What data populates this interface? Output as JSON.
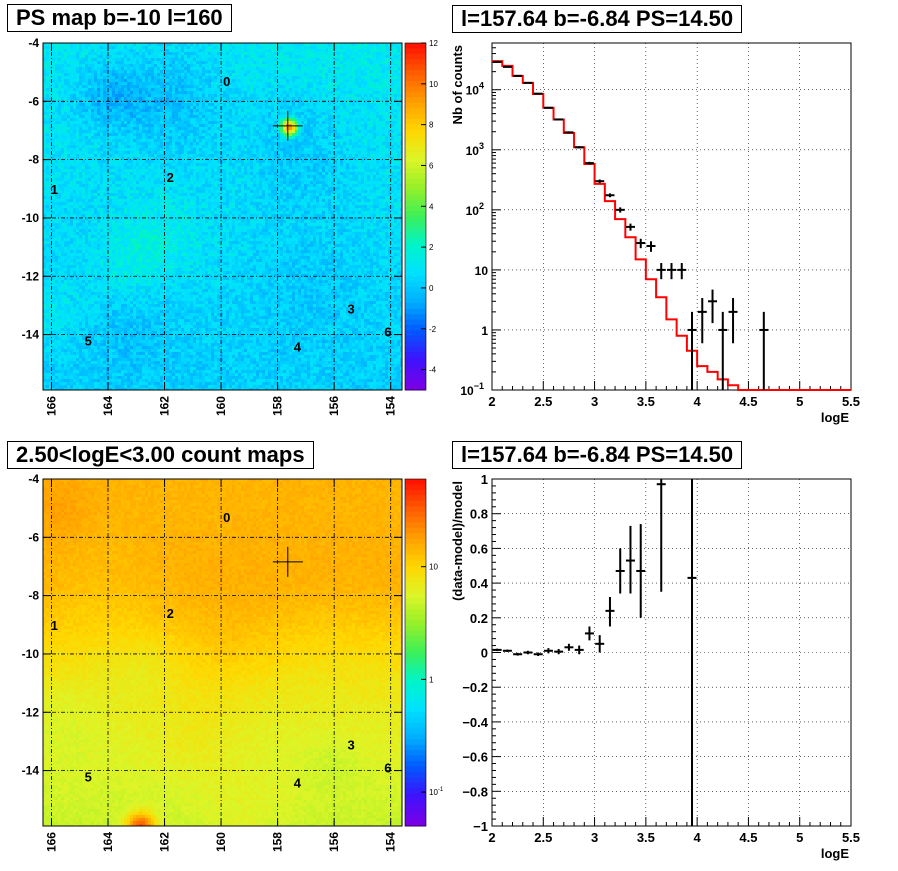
{
  "chart_data": [
    {
      "type": "heatmap",
      "title": "PS map b=-10 l=160",
      "x_ticks": [
        "166",
        "164",
        "162",
        "160",
        "158",
        "156",
        "154"
      ],
      "y_ticks": [
        "-4",
        "-6",
        "-8",
        "-10",
        "-12",
        "-14"
      ],
      "xlim": [
        166.3,
        153.6
      ],
      "ylim": [
        -15.9,
        -4
      ],
      "color_scale": "linear",
      "zlim": [
        -5,
        12
      ],
      "z_ticks": [
        "12",
        "10",
        "8",
        "6",
        "4",
        "2",
        "0",
        "-2",
        "-4"
      ],
      "sources": [
        {
          "label": "0",
          "l": 159.8,
          "b": -5.3
        },
        {
          "label": "1",
          "l": 165.9,
          "b": -9.0
        },
        {
          "label": "2",
          "l": 161.8,
          "b": -8.6
        },
        {
          "label": "3",
          "l": 155.4,
          "b": -13.1
        },
        {
          "label": "4",
          "l": 157.3,
          "b": -14.4
        },
        {
          "label": "5",
          "l": 164.7,
          "b": -14.2
        },
        {
          "label": "6",
          "l": 154.1,
          "b": -13.9
        }
      ],
      "marker": {
        "l": 157.64,
        "b": -6.84
      },
      "hot_spot": {
        "l": 157.64,
        "b": -6.84
      }
    },
    {
      "type": "line",
      "title": "l=157.64 b=-6.84 PS=14.50",
      "xlabel": "logE",
      "ylabel": "Nb of counts",
      "xlim": [
        2,
        5.5
      ],
      "ylim": [
        0.1,
        60000
      ],
      "yscale": "log",
      "grid": true,
      "x_ticks": [
        "2",
        "2.5",
        "3",
        "3.5",
        "4",
        "4.5",
        "5",
        "5.5"
      ],
      "y_ticks": [
        {
          "value": 0.1,
          "label": "10",
          "exp": "−1"
        },
        {
          "value": 1,
          "label": "1",
          "exp": ""
        },
        {
          "value": 10,
          "label": "10",
          "exp": ""
        },
        {
          "value": 100,
          "label": "10",
          "exp": "2"
        },
        {
          "value": 1000,
          "label": "10",
          "exp": "3"
        },
        {
          "value": 10000,
          "label": "10",
          "exp": "4"
        }
      ],
      "series": [
        {
          "kind": "step",
          "color": "#ff0000",
          "bin_edges": [
            2,
            2.1,
            2.2,
            2.3,
            2.4,
            2.5,
            2.6,
            2.7,
            2.8,
            2.9,
            3,
            3.1,
            3.2,
            3.3,
            3.4,
            3.5,
            3.6,
            3.7,
            3.8,
            3.9,
            4,
            4.1,
            4.2,
            4.3,
            4.4,
            4.5,
            4.6,
            4.7,
            4.8,
            4.9,
            5,
            5.1,
            5.2,
            5.3,
            5.4,
            5.5
          ],
          "values": [
            30000,
            25000,
            17000,
            13000,
            8500,
            5000,
            3200,
            1900,
            1100,
            580,
            270,
            140,
            70,
            35,
            15,
            7,
            3.5,
            1.5,
            0.8,
            0.45,
            0.25,
            0.2,
            0.15,
            0.12,
            0.1,
            0.1,
            0.1,
            0.1,
            0.1,
            0.1,
            0.1,
            0.1,
            0.1,
            0.1,
            0.1
          ]
        },
        {
          "kind": "errorbar",
          "color": "#000000",
          "points": [
            {
              "x": 2.05,
              "y": 29000,
              "lo": 28500,
              "hi": 29500
            },
            {
              "x": 2.15,
              "y": 24000,
              "lo": 23500,
              "hi": 24500
            },
            {
              "x": 2.25,
              "y": 17000,
              "lo": 16600,
              "hi": 17400
            },
            {
              "x": 2.35,
              "y": 13000,
              "lo": 12700,
              "hi": 13300
            },
            {
              "x": 2.45,
              "y": 8600,
              "lo": 8400,
              "hi": 8800
            },
            {
              "x": 2.55,
              "y": 5000,
              "lo": 4850,
              "hi": 5150
            },
            {
              "x": 2.65,
              "y": 3200,
              "lo": 3100,
              "hi": 3300
            },
            {
              "x": 2.75,
              "y": 1950,
              "lo": 1880,
              "hi": 2020
            },
            {
              "x": 2.85,
              "y": 1100,
              "lo": 1050,
              "hi": 1150
            },
            {
              "x": 2.95,
              "y": 600,
              "lo": 570,
              "hi": 630
            },
            {
              "x": 3.05,
              "y": 300,
              "lo": 280,
              "hi": 320
            },
            {
              "x": 3.15,
              "y": 175,
              "lo": 162,
              "hi": 188
            },
            {
              "x": 3.25,
              "y": 100,
              "lo": 90,
              "hi": 110
            },
            {
              "x": 3.35,
              "y": 52,
              "lo": 45,
              "hi": 59
            },
            {
              "x": 3.45,
              "y": 28,
              "lo": 23,
              "hi": 33
            },
            {
              "x": 3.55,
              "y": 25,
              "lo": 20,
              "hi": 30
            },
            {
              "x": 3.65,
              "y": 10,
              "lo": 7,
              "hi": 13
            },
            {
              "x": 3.75,
              "y": 10,
              "lo": 7,
              "hi": 13
            },
            {
              "x": 3.85,
              "y": 10,
              "lo": 7,
              "hi": 13
            },
            {
              "x": 3.95,
              "y": 1,
              "lo": 0.1,
              "hi": 2
            },
            {
              "x": 4.05,
              "y": 2,
              "lo": 0.6,
              "hi": 3.4
            },
            {
              "x": 4.15,
              "y": 3,
              "lo": 1.3,
              "hi": 4.7
            },
            {
              "x": 4.25,
              "y": 1,
              "lo": 0.1,
              "hi": 2
            },
            {
              "x": 4.35,
              "y": 2,
              "lo": 0.6,
              "hi": 3.4
            },
            {
              "x": 4.65,
              "y": 1,
              "lo": 0.1,
              "hi": 2
            }
          ]
        }
      ]
    },
    {
      "type": "heatmap",
      "title": "2.50<logE<3.00 count maps",
      "x_ticks": [
        "166",
        "164",
        "162",
        "160",
        "158",
        "156",
        "154"
      ],
      "y_ticks": [
        "-4",
        "-6",
        "-8",
        "-10",
        "-12",
        "-14"
      ],
      "xlim": [
        166.3,
        153.6
      ],
      "ylim": [
        -15.9,
        -4
      ],
      "color_scale": "log",
      "z_ticks": [
        {
          "value": 10,
          "label": "10",
          "exp": ""
        },
        {
          "value": 1,
          "label": "1",
          "exp": ""
        },
        {
          "value": 0.1,
          "label": "10",
          "exp": "-1"
        }
      ],
      "sources": [
        {
          "label": "0",
          "l": 159.8,
          "b": -5.3
        },
        {
          "label": "1",
          "l": 165.9,
          "b": -9.0
        },
        {
          "label": "2",
          "l": 161.8,
          "b": -8.6
        },
        {
          "label": "3",
          "l": 155.4,
          "b": -13.1
        },
        {
          "label": "4",
          "l": 157.3,
          "b": -14.4
        },
        {
          "label": "5",
          "l": 164.7,
          "b": -14.2
        },
        {
          "label": "6",
          "l": 154.1,
          "b": -13.9
        }
      ],
      "marker": {
        "l": 157.64,
        "b": -6.84
      },
      "hot_spot": {
        "l": 162.9,
        "b": -15.9
      }
    },
    {
      "type": "scatter",
      "title": "l=157.64 b=-6.84 PS=14.50",
      "xlabel": "logE",
      "ylabel": "(data-model)/model",
      "xlim": [
        2,
        5.5
      ],
      "ylim": [
        -1,
        1
      ],
      "grid": true,
      "x_ticks": [
        "2",
        "2.5",
        "3",
        "3.5",
        "4",
        "4.5",
        "5",
        "5.5"
      ],
      "y_ticks": [
        "1",
        "0.8",
        "0.6",
        "0.4",
        "0.2",
        "0",
        "−0.2",
        "−0.4",
        "−0.6",
        "−0.8",
        "−1"
      ],
      "series": [
        {
          "kind": "errorbar",
          "color": "#000000",
          "points": [
            {
              "x": 2.05,
              "y": 0.015,
              "lo": 0.008,
              "hi": 0.022
            },
            {
              "x": 2.15,
              "y": 0.01,
              "lo": 0.003,
              "hi": 0.017
            },
            {
              "x": 2.25,
              "y": -0.01,
              "lo": -0.018,
              "hi": -0.002
            },
            {
              "x": 2.35,
              "y": 0.0,
              "lo": -0.01,
              "hi": 0.01
            },
            {
              "x": 2.45,
              "y": -0.01,
              "lo": -0.02,
              "hi": 0.0
            },
            {
              "x": 2.55,
              "y": 0.01,
              "lo": -0.005,
              "hi": 0.025
            },
            {
              "x": 2.65,
              "y": 0.005,
              "lo": -0.01,
              "hi": 0.02
            },
            {
              "x": 2.75,
              "y": 0.03,
              "lo": 0.01,
              "hi": 0.05
            },
            {
              "x": 2.85,
              "y": 0.015,
              "lo": -0.01,
              "hi": 0.04
            },
            {
              "x": 2.95,
              "y": 0.11,
              "lo": 0.07,
              "hi": 0.15
            },
            {
              "x": 3.05,
              "y": 0.05,
              "lo": 0.0,
              "hi": 0.1
            },
            {
              "x": 3.15,
              "y": 0.24,
              "lo": 0.15,
              "hi": 0.32
            },
            {
              "x": 3.25,
              "y": 0.47,
              "lo": 0.34,
              "hi": 0.6
            },
            {
              "x": 3.35,
              "y": 0.53,
              "lo": 0.34,
              "hi": 0.73
            },
            {
              "x": 3.45,
              "y": 0.47,
              "lo": 0.2,
              "hi": 0.74
            },
            {
              "x": 3.65,
              "y": 0.97,
              "lo": 0.35,
              "hi": 1.0
            },
            {
              "x": 3.95,
              "y": 0.43,
              "lo": -1.0,
              "hi": 1.0
            }
          ]
        }
      ]
    }
  ]
}
